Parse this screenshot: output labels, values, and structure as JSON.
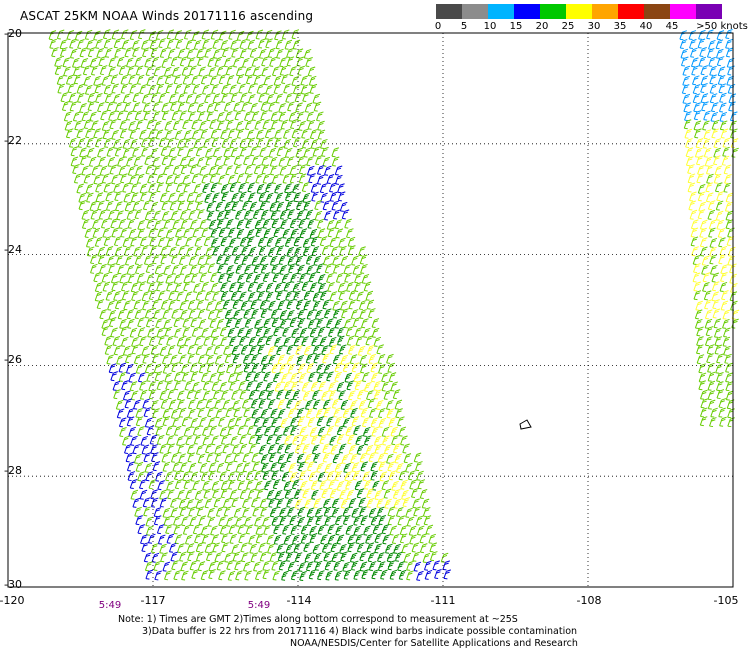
{
  "title": "ASCAT 25KM NOAA Winds 20171116 ascending",
  "color_scale": {
    "labels": [
      "0",
      "5",
      "10",
      "15",
      "20",
      "25",
      "30",
      "35",
      "40",
      "45",
      ">50 knots"
    ],
    "colors": [
      "#4a4a4a",
      "#8c8c8c",
      "#00b4ff",
      "#0000ff",
      "#00c800",
      "#ffff00",
      "#ffa500",
      "#ff0000",
      "#8b4513",
      "#ff00ff",
      "#7a00b4"
    ]
  },
  "map": {
    "lon_min": -120,
    "lon_max": -105,
    "lat_min": -30,
    "lat_max": -20,
    "x_ticks": [
      "-120",
      "-117",
      "-114",
      "-111",
      "-108",
      "-105"
    ],
    "y_ticks": [
      "-20",
      "-22",
      "-24",
      "-26",
      "-28",
      "-30"
    ],
    "grid": "dotted",
    "swath_colors": {
      "light_green": "#66cc00",
      "dark_green": "#008800",
      "blue": "#0000dd",
      "yellow": "#ffff33",
      "cyan": "#0099ff"
    }
  },
  "times": [
    "5:49",
    "5:49"
  ],
  "notes": {
    "line1": "Note: 1) Times are GMT 2)Times along bottom correspond to measurement at ~25S",
    "line2": "3)Data buffer is 22 hrs from 20171116 4) Black wind barbs indicate possible contamination",
    "line3": "NOAA/NESDIS/Center for Satellite Applications and Research"
  }
}
